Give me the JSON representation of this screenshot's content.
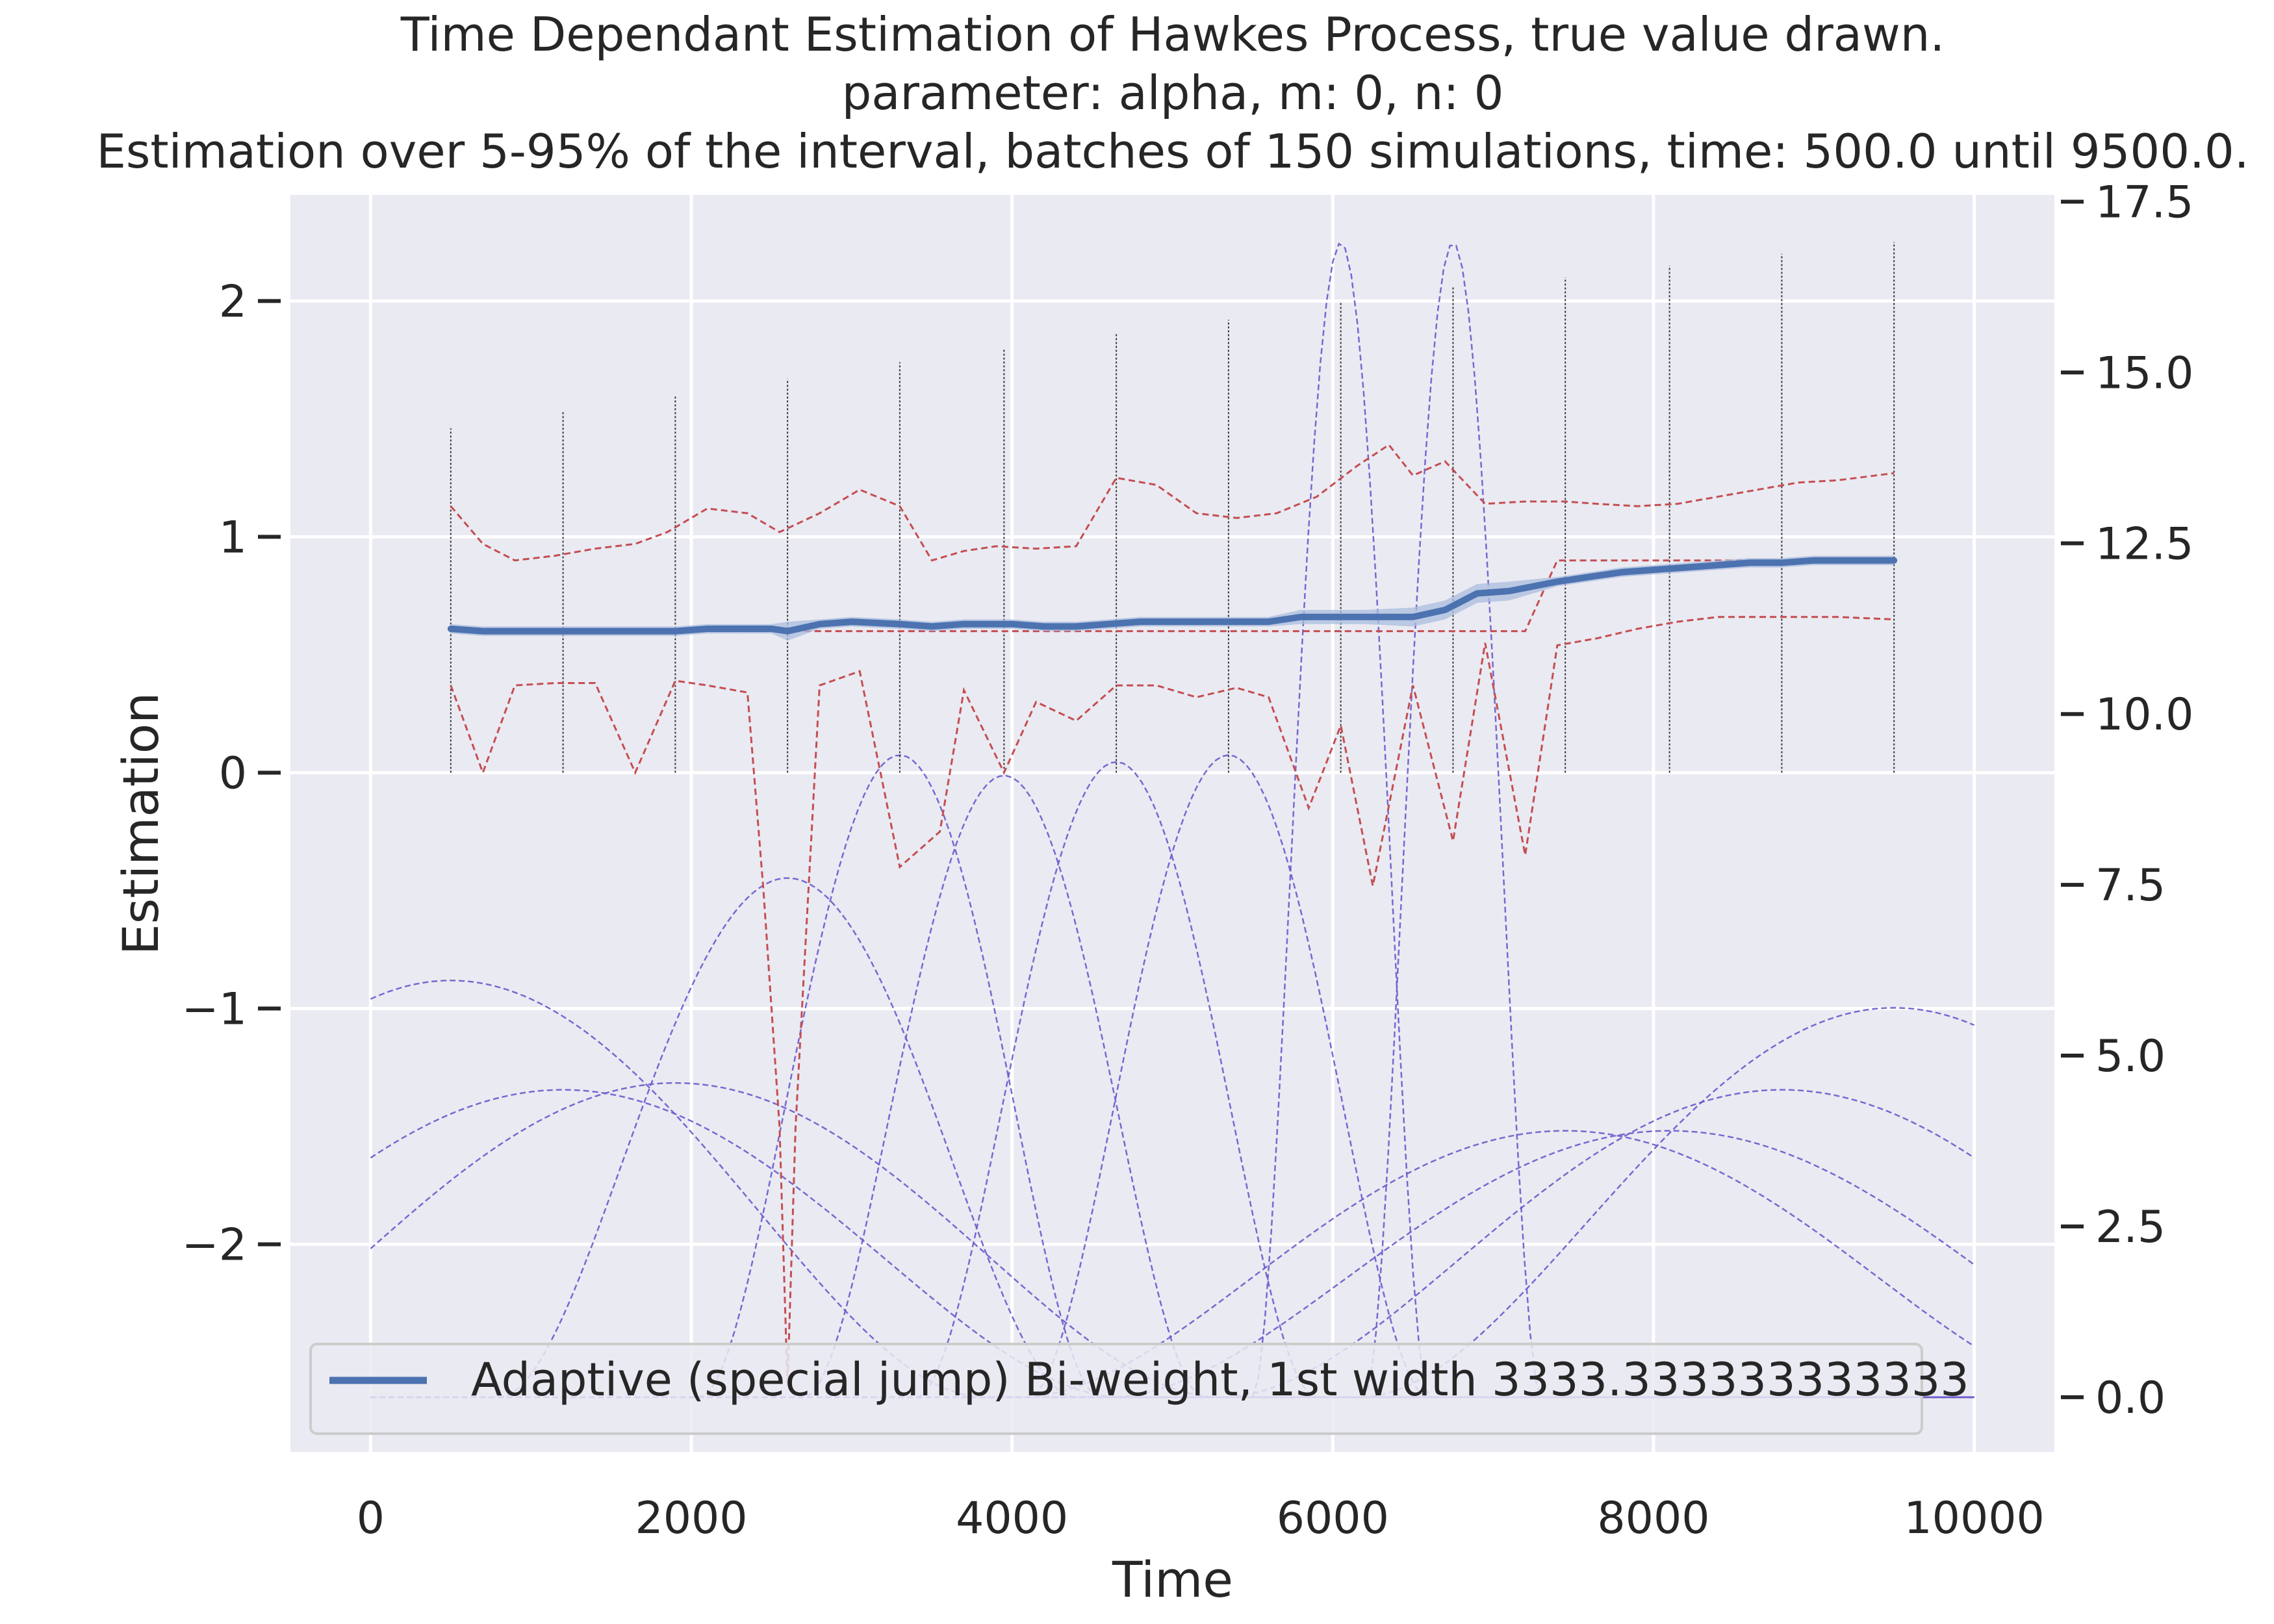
{
  "chart_data": {
    "type": "line",
    "title_lines": [
      "Time Dependant Estimation of Hawkes Process, true value drawn.",
      "parameter: alpha, m: 0, n: 0",
      "Estimation over 5-95% of the interval, batches of 150 simulations, time: 500.0 until 9500.0."
    ],
    "xlabel": "Time",
    "ylabel": "Estimation",
    "xlim": [
      -500,
      10500
    ],
    "ylim": [
      -2.88,
      2.45
    ],
    "y2lim": [
      -0.8,
      17.6
    ],
    "xticks": [
      0,
      2000,
      4000,
      6000,
      8000,
      10000
    ],
    "xtick_labels": [
      "0",
      "2000",
      "4000",
      "6000",
      "8000",
      "10000"
    ],
    "yticks": [
      -2,
      -1,
      0,
      1,
      2
    ],
    "ytick_labels": [
      "−2",
      "−1",
      "0",
      "1",
      "2"
    ],
    "y2ticks": [
      0,
      2.5,
      5,
      7.5,
      10,
      12.5,
      15,
      17.5
    ],
    "y2tick_labels": [
      "0.0",
      "2.5",
      "5.0",
      "7.5",
      "10.0",
      "12.5",
      "15.0",
      "17.5"
    ],
    "grid": true,
    "legend": {
      "placement": "lower-left",
      "entries": [
        "Adaptive (special jump) Bi-weight, 1st width 3333.333333333333"
      ]
    },
    "colors": {
      "background": "#EAEAF2",
      "grid": "#FFFFFF",
      "estimate": "#4C72B0",
      "band": "#A9BCDD",
      "quantiles": "#C44E52",
      "true_value": "#C44E52",
      "kernels": "#6A5ACD",
      "stems": "#333333"
    },
    "estimate": {
      "x": [
        500,
        700,
        900,
        1100,
        1300,
        1500,
        1700,
        1900,
        2100,
        2300,
        2500,
        2600,
        2800,
        3000,
        3300,
        3500,
        3700,
        4000,
        4200,
        4400,
        4600,
        4800,
        5000,
        5200,
        5400,
        5600,
        5800,
        6000,
        6200,
        6500,
        6700,
        6900,
        7100,
        7400,
        7600,
        7800,
        8000,
        8200,
        8400,
        8600,
        8800,
        9000,
        9200,
        9500
      ],
      "y": [
        0.61,
        0.6,
        0.6,
        0.6,
        0.6,
        0.6,
        0.6,
        0.6,
        0.61,
        0.61,
        0.61,
        0.6,
        0.63,
        0.64,
        0.63,
        0.62,
        0.63,
        0.63,
        0.62,
        0.62,
        0.63,
        0.64,
        0.64,
        0.64,
        0.64,
        0.64,
        0.66,
        0.66,
        0.66,
        0.66,
        0.69,
        0.76,
        0.77,
        0.81,
        0.83,
        0.85,
        0.86,
        0.87,
        0.88,
        0.89,
        0.89,
        0.9,
        0.9,
        0.9
      ],
      "band_halfwidth": [
        0.02,
        0.02,
        0.02,
        0.02,
        0.02,
        0.02,
        0.02,
        0.02,
        0.02,
        0.02,
        0.02,
        0.04,
        0.02,
        0.02,
        0.02,
        0.02,
        0.02,
        0.02,
        0.02,
        0.02,
        0.02,
        0.02,
        0.02,
        0.02,
        0.02,
        0.02,
        0.03,
        0.03,
        0.03,
        0.04,
        0.04,
        0.04,
        0.04,
        0.02,
        0.02,
        0.02,
        0.02,
        0.02,
        0.02,
        0.02,
        0.02,
        0.02,
        0.02,
        0.02
      ]
    },
    "upper_quantile": {
      "x": [
        500,
        700,
        900,
        1150,
        1400,
        1650,
        1850,
        2100,
        2350,
        2550,
        2800,
        3050,
        3300,
        3500,
        3700,
        3900,
        4150,
        4400,
        4650,
        4900,
        5150,
        5400,
        5650,
        5900,
        6150,
        6350,
        6500,
        6700,
        6950,
        7200,
        7450,
        7650,
        7900,
        8150,
        8400,
        8650,
        8900,
        9150,
        9500
      ],
      "y": [
        1.13,
        0.97,
        0.9,
        0.92,
        0.95,
        0.97,
        1.02,
        1.12,
        1.1,
        1.02,
        1.1,
        1.2,
        1.13,
        0.9,
        0.94,
        0.96,
        0.95,
        0.96,
        1.25,
        1.22,
        1.1,
        1.08,
        1.1,
        1.17,
        1.3,
        1.39,
        1.26,
        1.32,
        1.14,
        1.15,
        1.15,
        1.14,
        1.13,
        1.14,
        1.17,
        1.2,
        1.23,
        1.24,
        1.27
      ]
    },
    "lower_quantile": {
      "x": [
        500,
        700,
        900,
        1150,
        1400,
        1650,
        1900,
        2100,
        2350,
        2450,
        2550,
        2600,
        2650,
        2800,
        3050,
        3300,
        3550,
        3700,
        3950,
        4150,
        4400,
        4650,
        4900,
        5150,
        5400,
        5600,
        5850,
        6050,
        6250,
        6500,
        6750,
        6950,
        7200,
        7400,
        7650,
        7900,
        8150,
        8400,
        8650,
        8900,
        9150,
        9500
      ],
      "y": [
        0.37,
        0.0,
        0.37,
        0.38,
        0.38,
        0.0,
        0.39,
        0.37,
        0.34,
        -0.5,
        -1.5,
        -2.6,
        -1.5,
        0.37,
        0.43,
        -0.4,
        -0.25,
        0.35,
        0.0,
        0.3,
        0.22,
        0.37,
        0.37,
        0.32,
        0.36,
        0.32,
        -0.15,
        0.2,
        -0.48,
        0.37,
        -0.29,
        0.55,
        -0.35,
        0.54,
        0.57,
        0.61,
        0.64,
        0.66,
        0.66,
        0.66,
        0.66,
        0.65
      ]
    },
    "true_value": {
      "x": [
        500,
        700,
        900,
        1100,
        1300,
        1500,
        1700,
        1900,
        2100,
        2300,
        2500,
        2700,
        2900,
        3100,
        3300,
        3500,
        3700,
        3900,
        4100,
        4300,
        4500,
        4700,
        4900,
        5100,
        5300,
        5500,
        5700,
        5900,
        6100,
        6300,
        6500,
        6700,
        6900,
        7200,
        7400,
        7600,
        7800,
        8000,
        8200,
        8400,
        8600,
        8800,
        9000,
        9200,
        9500
      ],
      "y": [
        0.6,
        0.6,
        0.6,
        0.6,
        0.6,
        0.6,
        0.6,
        0.6,
        0.6,
        0.6,
        0.6,
        0.6,
        0.6,
        0.6,
        0.6,
        0.6,
        0.6,
        0.6,
        0.6,
        0.6,
        0.6,
        0.6,
        0.6,
        0.6,
        0.6,
        0.6,
        0.6,
        0.6,
        0.6,
        0.6,
        0.6,
        0.6,
        0.6,
        0.6,
        0.9,
        0.9,
        0.9,
        0.9,
        0.9,
        0.9,
        0.9,
        0.9,
        0.9,
        0.9,
        0.9
      ]
    },
    "kernel_stems": {
      "x": [
        500,
        1200,
        1900,
        2600,
        3300,
        3950,
        4650,
        5350,
        6050,
        6750,
        7450,
        8100,
        8800,
        9500
      ],
      "top": [
        1.46,
        1.53,
        1.6,
        1.67,
        1.74,
        1.8,
        1.86,
        1.92,
        2.0,
        2.06,
        2.1,
        2.15,
        2.2,
        2.25
      ]
    },
    "kernels": {
      "axis": "secondary",
      "centers": [
        500,
        1200,
        1900,
        2600,
        3300,
        3950,
        4650,
        5350,
        6050,
        6750,
        7450,
        8100,
        8800,
        9500
      ],
      "heights": [
        6.1,
        4.5,
        4.6,
        7.6,
        9.4,
        9.1,
        9.3,
        9.4,
        16.9,
        16.9,
        3.9,
        3.9,
        4.5,
        5.7
      ],
      "half_widths": [
        3333,
        3500,
        3400,
        1800,
        1250,
        1250,
        1250,
        1250,
        550,
        550,
        3400,
        3500,
        3500,
        3333
      ]
    }
  }
}
